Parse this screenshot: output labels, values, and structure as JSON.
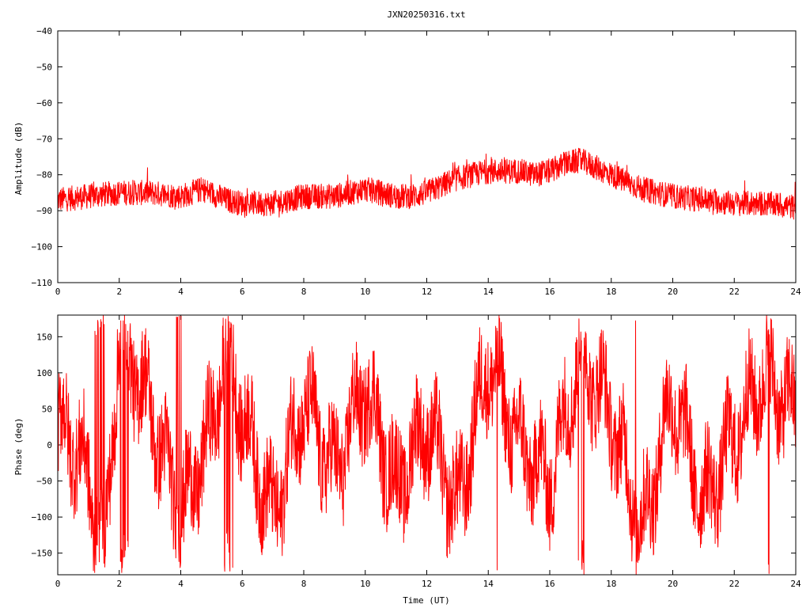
{
  "title": "JXN20250316.txt",
  "chart_data": [
    {
      "type": "line",
      "id": "amplitude",
      "ylabel": "Amplitude (dB)",
      "xlabel": "",
      "xlim": [
        0,
        24
      ],
      "ylim": [
        -110,
        -40
      ],
      "xticks": [
        0,
        2,
        4,
        6,
        8,
        10,
        12,
        14,
        16,
        18,
        20,
        22,
        24
      ],
      "yticks": [
        -40,
        -50,
        -60,
        -70,
        -80,
        -90,
        -100,
        -110
      ],
      "ytick_labels": [
        "−40",
        "−50",
        "−60",
        "−70",
        "−80",
        "−90",
        "−100",
        "−110"
      ],
      "series_color": "#ff0000",
      "x": [
        0,
        1,
        2,
        3,
        4,
        4.7,
        5.5,
        6,
        6.5,
        7,
        8,
        9,
        10,
        11,
        11.5,
        12,
        12.5,
        13,
        14,
        15,
        15.5,
        16,
        16.5,
        17,
        17.5,
        18,
        18.5,
        19,
        20,
        21,
        22,
        23,
        24
      ],
      "y": [
        -87,
        -86,
        -85,
        -85,
        -86,
        -84,
        -87,
        -88,
        -88,
        -88,
        -86,
        -86,
        -84,
        -86,
        -86,
        -85,
        -83,
        -81,
        -79,
        -79,
        -80,
        -79,
        -77,
        -76,
        -78,
        -80,
        -82,
        -84,
        -86,
        -87,
        -88,
        -88,
        -89
      ],
      "spread_db": 7
    },
    {
      "type": "line",
      "id": "phase",
      "ylabel": "Phase (deg)",
      "xlabel": "Time (UT)",
      "xlim": [
        0,
        24
      ],
      "ylim": [
        -180,
        180
      ],
      "xticks": [
        0,
        2,
        4,
        6,
        8,
        10,
        12,
        14,
        16,
        18,
        20,
        22,
        24
      ],
      "yticks": [
        150,
        100,
        50,
        0,
        -50,
        -100,
        -150
      ],
      "ytick_labels": [
        "150",
        "100",
        "50",
        "0",
        "−50",
        "−100",
        "−150"
      ],
      "series_color": "#ff0000",
      "x": [
        0,
        0.5,
        1,
        1.5,
        2,
        3,
        4,
        5,
        5.5,
        6,
        7,
        8,
        9,
        10,
        11,
        12,
        13,
        14,
        15,
        16,
        17,
        18,
        19,
        20,
        21,
        22,
        23,
        24
      ],
      "y": [
        20,
        10,
        -50,
        -170,
        160,
        50,
        -100,
        20,
        150,
        40,
        -100,
        60,
        -40,
        80,
        -60,
        30,
        -90,
        120,
        0,
        -50,
        130,
        40,
        -120,
        70,
        -80,
        10,
        100,
        40
      ],
      "behavior": "wrapping noisy phase"
    }
  ]
}
